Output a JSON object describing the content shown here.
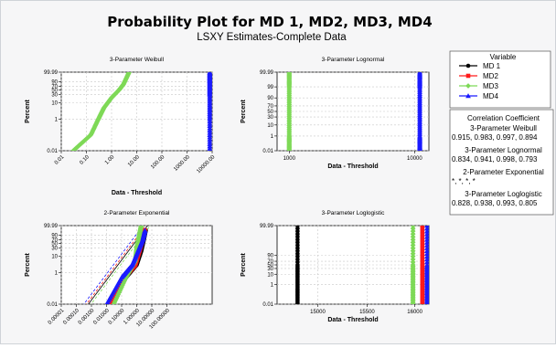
{
  "title": "Probability Plot for MD 1, MD2, MD3, MD4",
  "subtitle": "LSXY Estimates-Complete Data",
  "legend": {
    "title": "Variable",
    "items": [
      {
        "label": "MD 1",
        "color": "#000000",
        "marker": "circle"
      },
      {
        "label": "MD2",
        "color": "#ff1a1a",
        "marker": "square"
      },
      {
        "label": "MD3",
        "color": "#7ed957",
        "marker": "diamond"
      },
      {
        "label": "MD4",
        "color": "#1a1aff",
        "marker": "triangle"
      }
    ]
  },
  "correlation": {
    "title": "Correlation Coefficient",
    "sections": [
      {
        "name": "3-Parameter Weibull",
        "values": "0.915, 0.983, 0.997, 0.894"
      },
      {
        "name": "3-Parameter Lognormal",
        "values": "0.834, 0.941, 0.998, 0.793"
      },
      {
        "name": "2-Parameter Exponential",
        "values": "*, *, *, *"
      },
      {
        "name": "3-Parameter Loglogistic",
        "values": "0.828, 0.938, 0.993, 0.805"
      }
    ]
  },
  "chart_data": [
    {
      "type": "scatter",
      "title": "3-Parameter Weibull",
      "xlabel": "Data - Threshold",
      "ylabel": "Percent",
      "x_scale": "log",
      "y_scale": "weibull-probability",
      "xlim": [
        0.01,
        10000
      ],
      "x_ticks": [
        "0.01",
        "0.10",
        "1.00",
        "10.00",
        "100.00",
        "1000.00",
        "10000.00"
      ],
      "y_ticks": [
        "0.01",
        "1",
        "10",
        "30",
        "50",
        "70",
        "90",
        "99.99"
      ],
      "series": [
        {
          "name": "MD3",
          "points": [
            [
              0.03,
              0.01
            ],
            [
              0.15,
              0.1
            ],
            [
              0.3,
              1
            ],
            [
              0.5,
              5
            ],
            [
              1.0,
              20
            ],
            [
              2.0,
              50
            ],
            [
              3.0,
              80
            ],
            [
              5.0,
              99.99
            ]
          ]
        },
        {
          "name": "MD4",
          "points": [
            [
              8000,
              0.01
            ],
            [
              8000,
              1
            ],
            [
              8000,
              30
            ],
            [
              8000,
              90
            ],
            [
              8000,
              99.99
            ]
          ]
        }
      ]
    },
    {
      "type": "scatter",
      "title": "3-Parameter Lognormal",
      "xlabel": "Data - Threshold",
      "ylabel": "Percent",
      "x_scale": "log",
      "y_scale": "normal-probability",
      "xlim": [
        800,
        13000
      ],
      "x_ticks": [
        "1000",
        "10000"
      ],
      "y_ticks": [
        "0.01",
        "1",
        "10",
        "30",
        "50",
        "70",
        "90",
        "99",
        "99.99"
      ],
      "series": [
        {
          "name": "MD3",
          "points": [
            [
              1000,
              0.01
            ],
            [
              1000,
              1
            ],
            [
              1000,
              50
            ],
            [
              1000,
              99
            ],
            [
              1000,
              99.99
            ]
          ]
        },
        {
          "name": "MD4",
          "points": [
            [
              11000,
              0.01
            ],
            [
              11000,
              1
            ],
            [
              11000,
              50
            ],
            [
              11000,
              99
            ],
            [
              11000,
              99.99
            ]
          ]
        }
      ]
    },
    {
      "type": "scatter",
      "title": "2-Parameter Exponential",
      "xlabel": "Data - Threshold",
      "ylabel": "Percent",
      "x_scale": "log",
      "y_scale": "weibull-probability",
      "xlim": [
        1e-05,
        100000
      ],
      "x_ticks": [
        "0.00001",
        "0.00010",
        "0.00100",
        "0.01000",
        "0.10000",
        "1.00000",
        "10.00000",
        "100.00000"
      ],
      "y_ticks": [
        "0.01",
        "1",
        "10",
        "30",
        "50",
        "70",
        "90",
        "99.99"
      ],
      "series": [
        {
          "name": "MD 1",
          "points": [
            [
              0.02,
              0.01
            ],
            [
              0.2,
              0.5
            ],
            [
              1.0,
              3
            ],
            [
              2.0,
              20
            ],
            [
              3.0,
              70
            ],
            [
              4.0,
              99
            ]
          ]
        },
        {
          "name": "MD2",
          "points": [
            [
              0.015,
              0.01
            ],
            [
              0.15,
              0.5
            ],
            [
              0.8,
              3
            ],
            [
              1.5,
              20
            ],
            [
              2.5,
              70
            ],
            [
              3.5,
              99
            ]
          ]
        },
        {
          "name": "MD3",
          "points": [
            [
              0.03,
              0.01
            ],
            [
              0.2,
              0.5
            ],
            [
              0.8,
              5
            ],
            [
              1.0,
              30
            ],
            [
              1.5,
              90
            ],
            [
              2.0,
              99.99
            ]
          ]
        },
        {
          "name": "MD4",
          "points": [
            [
              0.01,
              0.01
            ],
            [
              0.1,
              0.5
            ],
            [
              0.5,
              3
            ],
            [
              1.2,
              20
            ],
            [
              2.5,
              70
            ],
            [
              3.5,
              99
            ]
          ]
        }
      ]
    },
    {
      "type": "scatter",
      "title": "3-Parameter Loglogistic",
      "xlabel": "Data - Threshold",
      "ylabel": "Percent",
      "x_scale": "log",
      "y_scale": "logistic-probability",
      "xlim": [
        14600,
        16150
      ],
      "x_ticks": [
        "15000",
        "15500",
        "16000"
      ],
      "y_ticks": [
        "0.01",
        "1",
        "10",
        "30",
        "50",
        "70",
        "90",
        "99.99"
      ],
      "series": [
        {
          "name": "MD 1",
          "points": [
            [
              14800,
              0.01
            ],
            [
              14800,
              1
            ],
            [
              14800,
              50
            ],
            [
              14800,
              99.99
            ]
          ]
        },
        {
          "name": "MD3",
          "points": [
            [
              15980,
              0.01
            ],
            [
              15980,
              1
            ],
            [
              15980,
              50
            ],
            [
              15980,
              99.99
            ]
          ]
        },
        {
          "name": "MD2",
          "points": [
            [
              16080,
              0.01
            ],
            [
              16080,
              1
            ],
            [
              16080,
              50
            ],
            [
              16080,
              99.99
            ]
          ]
        },
        {
          "name": "MD4",
          "points": [
            [
              16130,
              0.01
            ],
            [
              16130,
              1
            ],
            [
              16130,
              50
            ],
            [
              16130,
              99.99
            ]
          ]
        }
      ]
    }
  ]
}
